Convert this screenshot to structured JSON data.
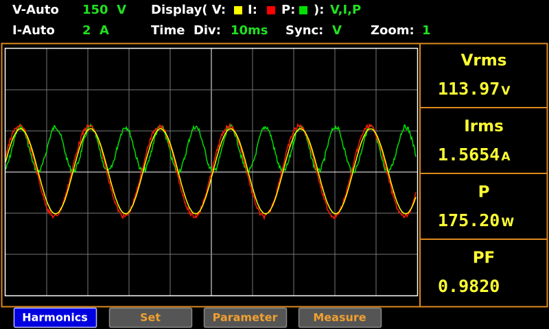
{
  "status": {
    "v_range_label": "V-Auto",
    "v_range": "150  V",
    "display_label": "Display( V:",
    "i_label": "I:",
    "p_label": "P:",
    "display_close": "):",
    "display_value": "V,I,P",
    "i_range_label": "I-Auto",
    "i_range": "2  A",
    "time_div_label": "Time  Div:",
    "time_div": "10ms",
    "sync_label": "Sync:",
    "sync": "V",
    "zoom_label": "Zoom:",
    "zoom": "1"
  },
  "readings": [
    {
      "name": "Vrms",
      "value": "113.97",
      "unit": "V"
    },
    {
      "name": "Irms",
      "value": "1.5654",
      "unit": "A"
    },
    {
      "name": "P",
      "value": "175.20",
      "unit": "W"
    },
    {
      "name": "PF",
      "value": "0.9820"
    }
  ],
  "buttons": [
    "Harmonics",
    "Set",
    "Parameter",
    "Measure"
  ]
}
